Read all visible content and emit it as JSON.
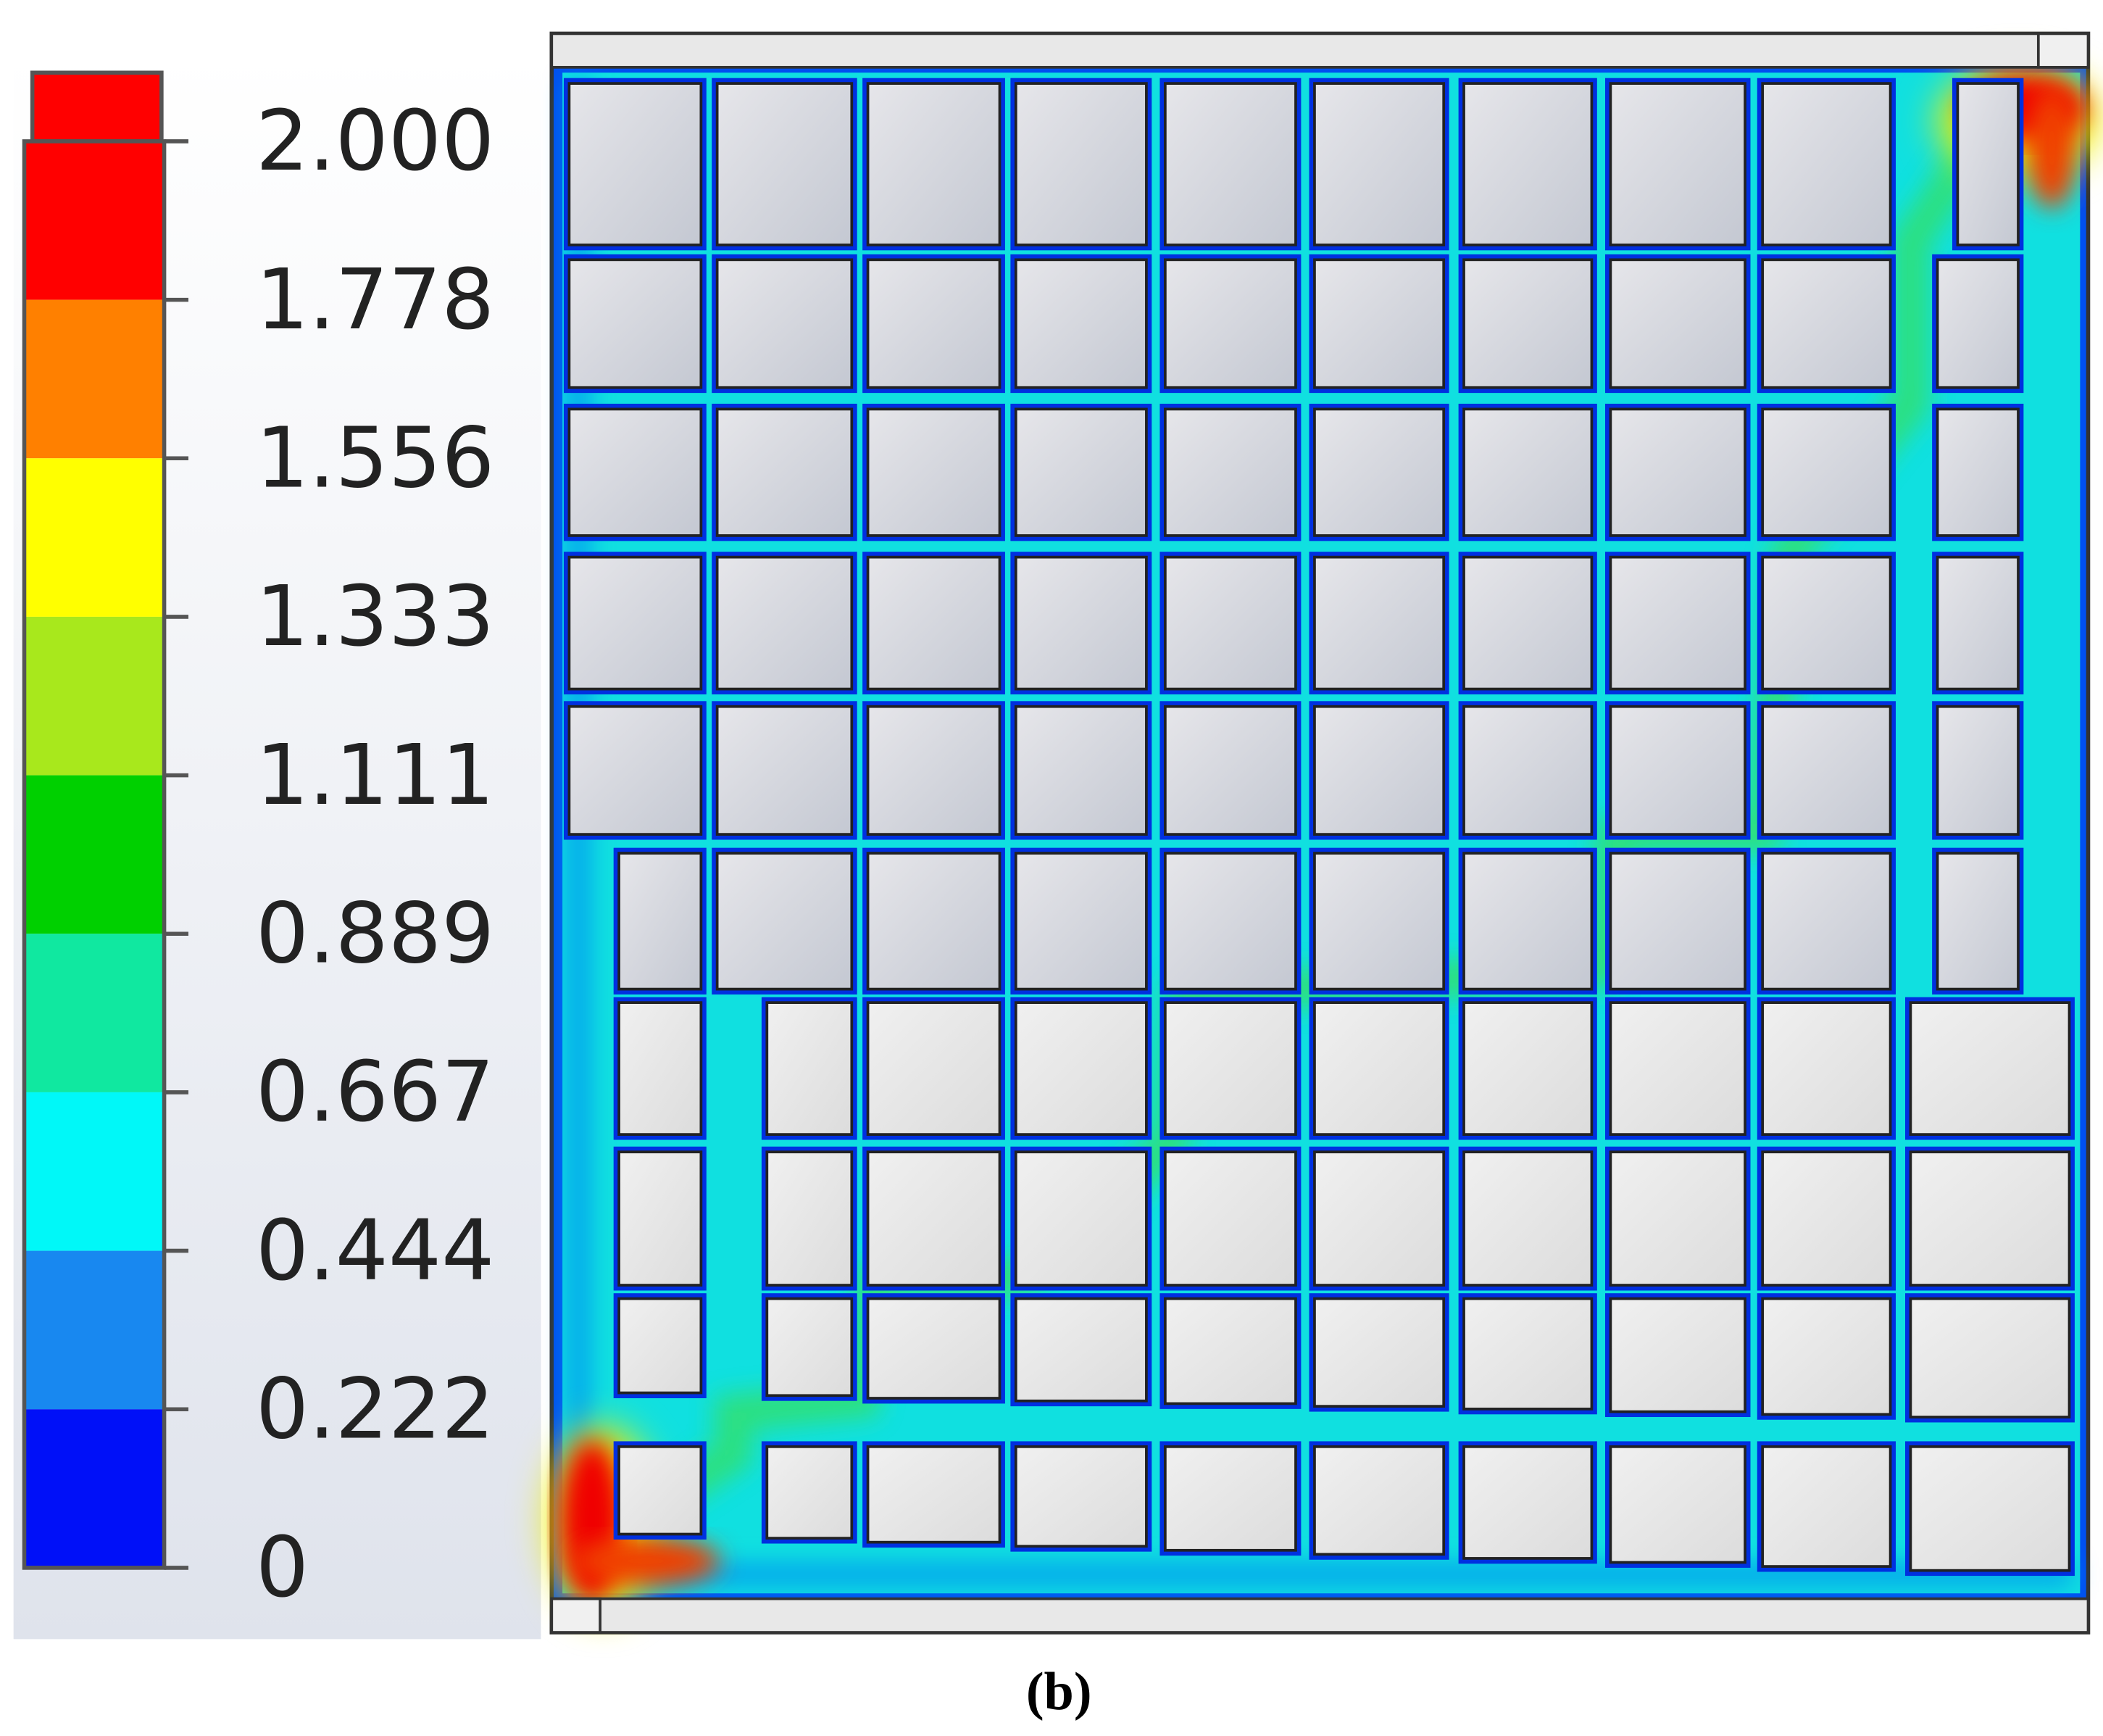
{
  "colorbar": {
    "ticks": [
      "2.000",
      "1.778",
      "1.556",
      "1.333",
      "1.111",
      "0.889",
      "0.667",
      "0.444",
      "0.222",
      "0"
    ],
    "overflow_color": "#ff0000",
    "band_colors": [
      "#ff0000",
      "#ff8000",
      "#ffff00",
      "#a8e81c",
      "#00d000",
      "#10e8a0",
      "#00f8f8",
      "#1888f0",
      "#0010f8"
    ]
  },
  "caption": "(b)"
}
